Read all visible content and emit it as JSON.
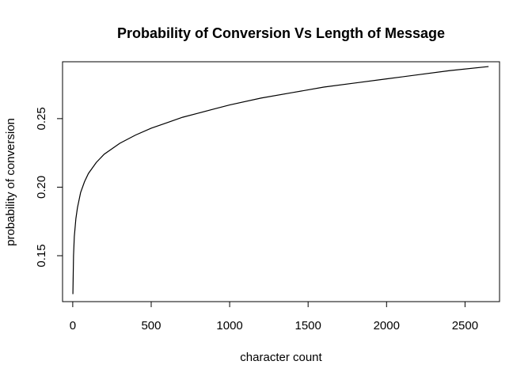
{
  "chart_data": {
    "type": "line",
    "title": "Probability of Conversion Vs Length of Message",
    "xlabel": "character count",
    "ylabel": "probability of conversion",
    "xlim": [
      -65,
      2720
    ],
    "ylim": [
      0.1165,
      0.2915
    ],
    "x_ticks": [
      0,
      500,
      1000,
      1500,
      2000,
      2500
    ],
    "x_tick_labels": [
      "0",
      "500",
      "1000",
      "1500",
      "2000",
      "2500"
    ],
    "y_ticks": [
      0.15,
      0.2,
      0.25
    ],
    "y_tick_labels": [
      "0.15",
      "0.20",
      "0.25"
    ],
    "grid": false,
    "legend": "none",
    "line_color": "#000000",
    "series": [
      {
        "x": [
          1,
          5,
          10,
          20,
          30,
          50,
          75,
          100,
          150,
          200,
          300,
          400,
          500,
          600,
          700,
          800,
          900,
          1000,
          1200,
          1400,
          1600,
          1800,
          2000,
          2200,
          2400,
          2650
        ],
        "y": [
          0.122,
          0.15,
          0.164,
          0.177,
          0.185,
          0.196,
          0.204,
          0.21,
          0.218,
          0.224,
          0.232,
          0.238,
          0.243,
          0.247,
          0.251,
          0.254,
          0.257,
          0.26,
          0.265,
          0.269,
          0.273,
          0.276,
          0.279,
          0.282,
          0.285,
          0.288
        ]
      }
    ]
  }
}
